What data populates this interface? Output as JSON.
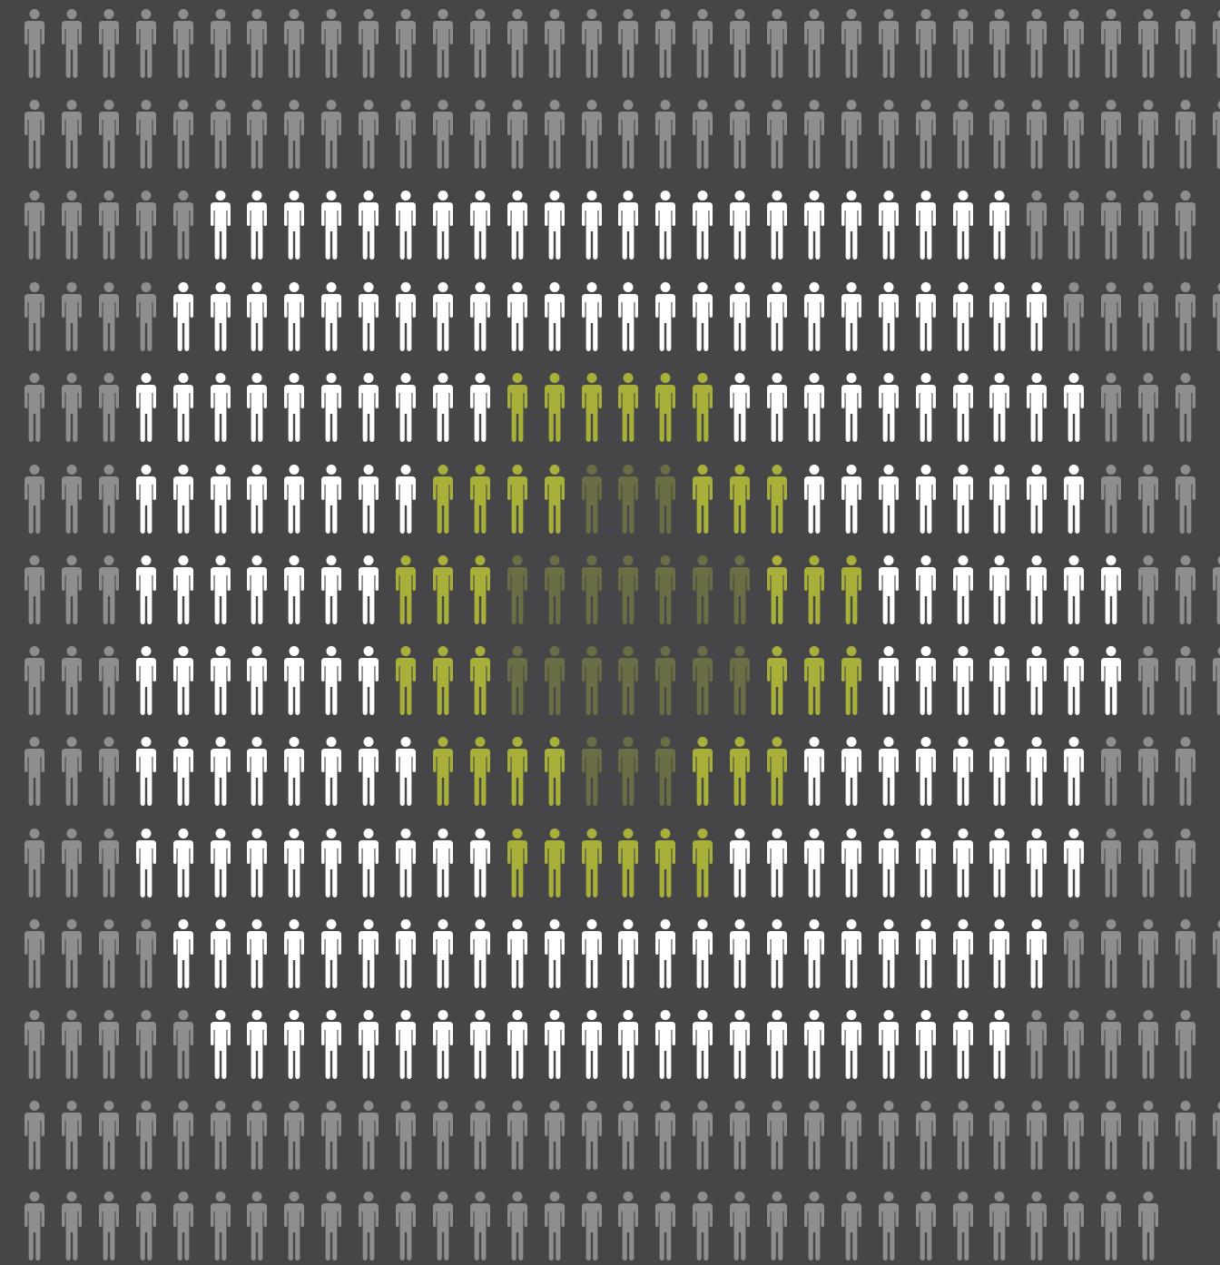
{
  "palette": {
    "background": "#464648",
    "g": "#8e8e8e",
    "w": "#ffffff",
    "y": "#a8b03a",
    "d": "#6b6d45"
  },
  "figure_icon": "person-icon",
  "rows": [
    "ggggggggggggggggggggggggggggggggg",
    "ggggggggggggggggggggggggggggggggg",
    "gggggwwwwwwwwwwwwwwwwwwwwwwggggg",
    "ggggwwwwwwwwwwwwwwwwwwwwwwwwggggg",
    "gggwwwwwwwwwwyyyyyywwwwwwwwwwggg",
    "gggwwwwwwwwyyyydddyyywwwwwwwwggg",
    "gggwwwwwwwyyydddddddyyywwwwwwwggg",
    "gggwwwwwwwyyydddddddyyywwwwwwwggg",
    "gggwwwwwwwwyyyydddyyywwwwwwwwggg",
    "gggwwwwwwwwwwyyyyyywwwwwwwwwwggg",
    "ggggwwwwwwwwwwwwwwwwwwwwwwwwggggg",
    "gggggwwwwwwwwwwwwwwwwwwwwwwggggg",
    "ggggggggggggggggggggggggggggggggg",
    "ggggggggggggggggggggggggggggggg"
  ]
}
